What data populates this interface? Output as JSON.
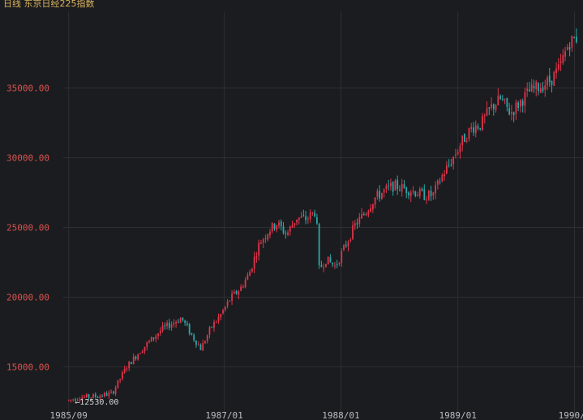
{
  "chart_data": {
    "type": "candlestick",
    "title": "日线  东京日经225指数",
    "colors": {
      "up": "#e0344a",
      "down": "#2aa7a7",
      "grid": "#2d2f33",
      "axis_text": "#b8bcc6",
      "price_text": "#d9534f",
      "title": "#d9b35f",
      "background": "#1b1c1f"
    },
    "y_range": [
      12000,
      40500
    ],
    "y_ticks": [
      {
        "value": 15000,
        "label": "15000.00"
      },
      {
        "value": 20000,
        "label": "20000.00"
      },
      {
        "value": 25000,
        "label": "25000.00"
      },
      {
        "value": 30000,
        "label": "30000.00"
      },
      {
        "value": 35000,
        "label": "35000.00"
      }
    ],
    "x_ticks": [
      {
        "date": "1985-09-01",
        "label": "1985/09"
      },
      {
        "date": "1987-01-01",
        "label": "1987/01"
      },
      {
        "date": "1988-01-01",
        "label": "1988/01"
      },
      {
        "date": "1989-01-01",
        "label": "1989/01"
      },
      {
        "date": "1990-01-01",
        "label": "1990/0"
      }
    ],
    "x_range": [
      "1985-08-15",
      "1990-01-20"
    ],
    "annotation": {
      "label": "←12530.00",
      "date": "1985-09-10",
      "value": 12530
    },
    "anchors": [
      [
        "1985-09-01",
        12600
      ],
      [
        "1985-10-01",
        12800
      ],
      [
        "1985-12-01",
        12900
      ],
      [
        "1986-01-15",
        13100
      ],
      [
        "1986-03-01",
        15000
      ],
      [
        "1986-04-15",
        16200
      ],
      [
        "1986-05-20",
        17000
      ],
      [
        "1986-06-20",
        17700
      ],
      [
        "1986-07-20",
        18100
      ],
      [
        "1986-08-20",
        18500
      ],
      [
        "1986-09-20",
        17300
      ],
      [
        "1986-10-20",
        16300
      ],
      [
        "1986-11-20",
        17800
      ],
      [
        "1986-12-20",
        18700
      ],
      [
        "1987-01-20",
        19900
      ],
      [
        "1987-02-20",
        20600
      ],
      [
        "1987-03-20",
        21700
      ],
      [
        "1987-04-20",
        23800
      ],
      [
        "1987-05-20",
        24800
      ],
      [
        "1987-06-15",
        25300
      ],
      [
        "1987-07-15",
        24500
      ],
      [
        "1987-08-15",
        25700
      ],
      [
        "1987-09-15",
        25600
      ],
      [
        "1987-10-15",
        26200
      ],
      [
        "1987-10-25",
        22000
      ],
      [
        "1987-11-15",
        22700
      ],
      [
        "1987-12-15",
        22200
      ],
      [
        "1988-01-15",
        23700
      ],
      [
        "1988-02-15",
        25200
      ],
      [
        "1988-03-15",
        26000
      ],
      [
        "1988-04-15",
        27100
      ],
      [
        "1988-05-15",
        27600
      ],
      [
        "1988-06-15",
        28000
      ],
      [
        "1988-07-15",
        27800
      ],
      [
        "1988-08-15",
        27600
      ],
      [
        "1988-09-15",
        27300
      ],
      [
        "1988-10-15",
        27300
      ],
      [
        "1988-11-15",
        28800
      ],
      [
        "1988-12-15",
        29900
      ],
      [
        "1989-01-15",
        31200
      ],
      [
        "1989-02-15",
        32200
      ],
      [
        "1989-03-15",
        32400
      ],
      [
        "1989-04-15",
        33600
      ],
      [
        "1989-05-15",
        34200
      ],
      [
        "1989-06-15",
        33200
      ],
      [
        "1989-07-15",
        34000
      ],
      [
        "1989-08-15",
        34800
      ],
      [
        "1989-09-15",
        35100
      ],
      [
        "1989-10-15",
        35500
      ],
      [
        "1989-11-15",
        36400
      ],
      [
        "1989-12-15",
        38300
      ],
      [
        "1990-01-10",
        38600
      ]
    ]
  }
}
